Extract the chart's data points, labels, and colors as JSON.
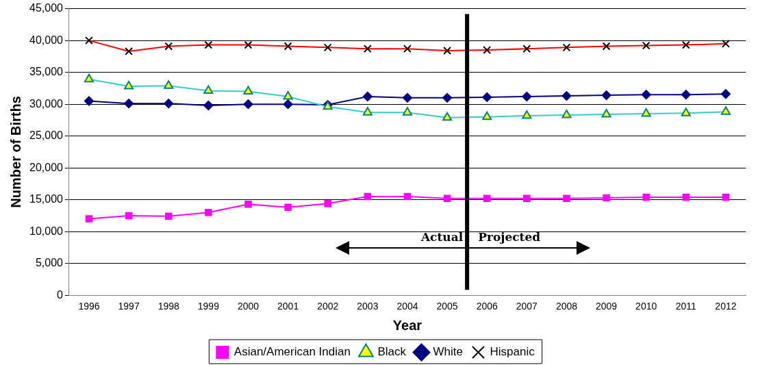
{
  "chart_data": {
    "type": "line",
    "xlabel": "Year",
    "ylabel": "Number of Births",
    "x": [
      1996,
      1997,
      1998,
      1999,
      2000,
      2001,
      2002,
      2003,
      2004,
      2005,
      2006,
      2007,
      2008,
      2009,
      2010,
      2011,
      2012
    ],
    "xlim": [
      1995.5,
      2012.5
    ],
    "xticks": [
      1996,
      1997,
      1998,
      1999,
      2000,
      2001,
      2002,
      2003,
      2004,
      2005,
      2006,
      2007,
      2008,
      2009,
      2010,
      2011,
      2012
    ],
    "ylim": [
      0,
      45000
    ],
    "yticks": [
      {
        "value": 0,
        "label": "0"
      },
      {
        "value": 5000,
        "label": "5,000"
      },
      {
        "value": 10000,
        "label": "10,000"
      },
      {
        "value": 15000,
        "label": "15,000"
      },
      {
        "value": 20000,
        "label": "20,000"
      },
      {
        "value": 25000,
        "label": "25,000"
      },
      {
        "value": 30000,
        "label": "30,000"
      },
      {
        "value": 35000,
        "label": "35,000"
      },
      {
        "value": 40000,
        "label": "40,000"
      },
      {
        "value": 45000,
        "label": "45,000"
      }
    ],
    "grid": "y",
    "legend": "bottom",
    "series": [
      {
        "name": "Asian/American Indian",
        "color": "#ff00ff",
        "marker": "square",
        "values": [
          12000,
          12500,
          12400,
          13000,
          14300,
          13800,
          14400,
          15500,
          15500,
          15200,
          15200,
          15200,
          15200,
          15300,
          15400,
          15400,
          15400
        ]
      },
      {
        "name": "Black",
        "color": "#33cccc",
        "marker": "triangle",
        "values": [
          33900,
          32800,
          32900,
          32100,
          32000,
          31200,
          29600,
          28700,
          28700,
          27900,
          28000,
          28200,
          28300,
          28400,
          28500,
          28600,
          28800
        ]
      },
      {
        "name": "White",
        "color": "#000080",
        "marker": "diamond",
        "values": [
          30500,
          30100,
          30100,
          29800,
          30000,
          30000,
          29900,
          31200,
          31000,
          31000,
          31100,
          31200,
          31300,
          31400,
          31500,
          31500,
          31600
        ]
      },
      {
        "name": "Hispanic",
        "color": "#ff0000",
        "marker": "cross",
        "values": [
          40000,
          38300,
          39100,
          39300,
          39300,
          39100,
          38900,
          38700,
          38700,
          38400,
          38500,
          38700,
          38900,
          39100,
          39200,
          39300,
          39500
        ]
      }
    ],
    "ref_lines": [
      {
        "axis": "x",
        "value": 2005.5,
        "color": "#000000"
      }
    ],
    "annotations": [
      "Actual",
      "Projected"
    ]
  }
}
